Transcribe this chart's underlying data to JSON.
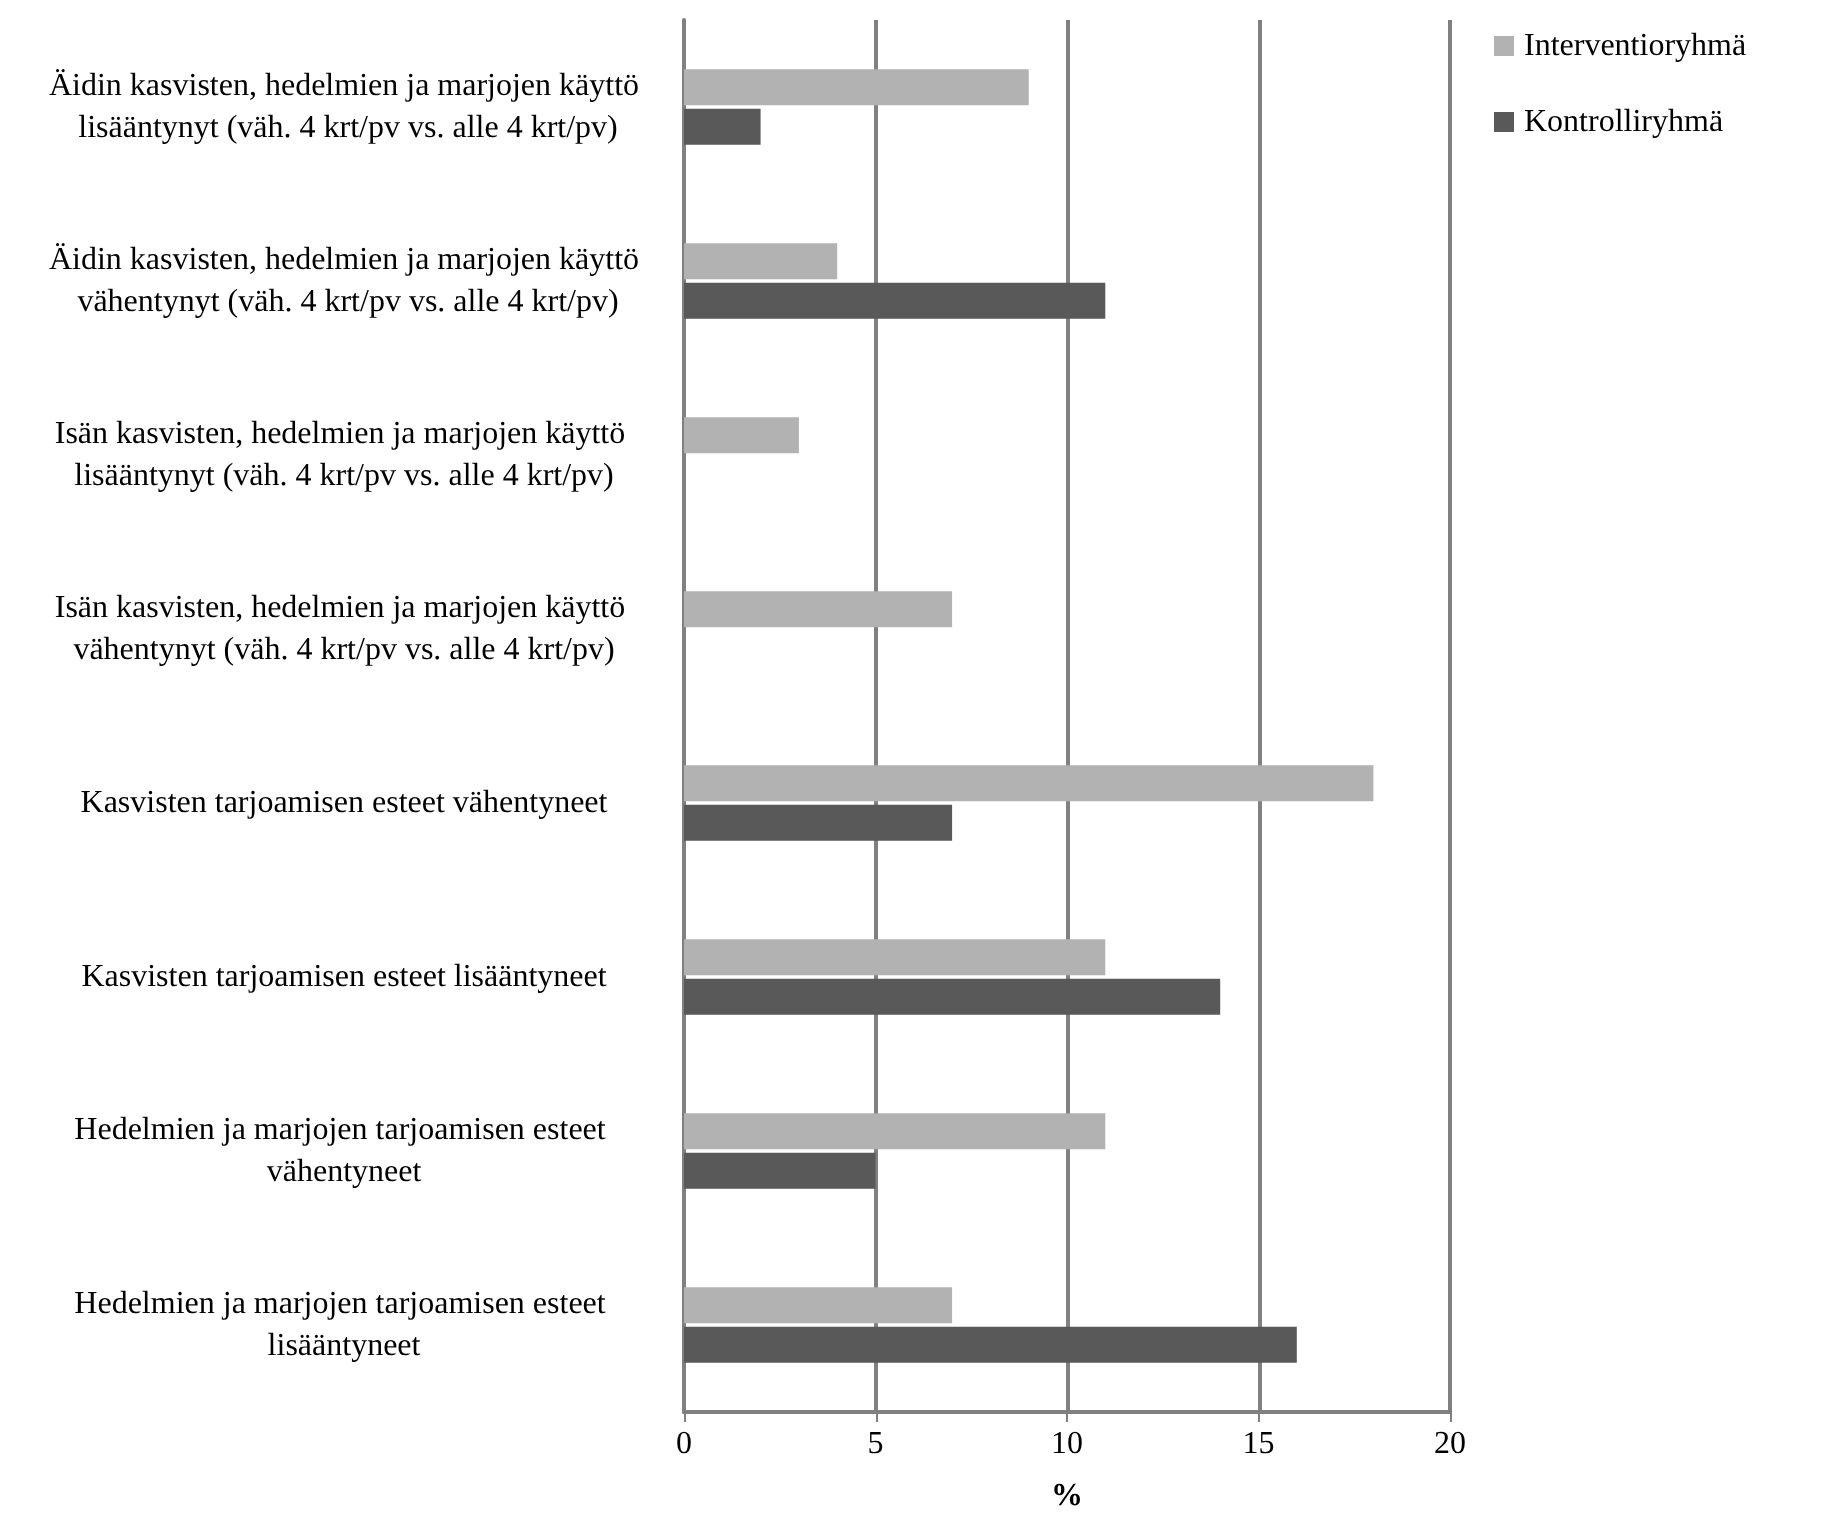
{
  "chart_data": {
    "type": "bar",
    "orientation": "horizontal",
    "xlabel": "%",
    "categories": [
      "Äidin kasvisten, hedelmien ja marjojen käyttö lisääntynyt (väh. 4 krt/pv vs. alle 4 krt/pv)",
      "Äidin kasvisten, hedelmien ja marjojen käyttö vähentynyt (väh. 4 krt/pv vs. alle 4 krt/pv)",
      "Isän kasvisten, hedelmien ja marjojen käyttö lisääntynyt (väh. 4 krt/pv vs. alle 4 krt/pv)",
      "Isän kasvisten, hedelmien ja marjojen käyttö vähentynyt (väh. 4 krt/pv vs. alle 4 krt/pv)",
      "Kasvisten tarjoamisen esteet vähentyneet",
      "Kasvisten tarjoamisen esteet lisääntyneet",
      "Hedelmien ja marjojen tarjoamisen esteet vähentyneet",
      "Hedelmien ja marjojen tarjoamisen esteet lisääntyneet"
    ],
    "series": [
      {
        "name": "Interventioryhmä",
        "color": "#b2b2b2",
        "values": [
          9,
          4,
          3,
          7,
          18,
          11,
          11,
          7
        ]
      },
      {
        "name": "Kontrolliryhmä",
        "color": "#595959",
        "values": [
          2,
          11,
          null,
          null,
          7,
          14,
          5,
          16
        ]
      }
    ],
    "xlim": [
      0,
      20
    ],
    "xticks": [
      0,
      5,
      10,
      15,
      20
    ],
    "grid": "x",
    "legend": "top right"
  }
}
